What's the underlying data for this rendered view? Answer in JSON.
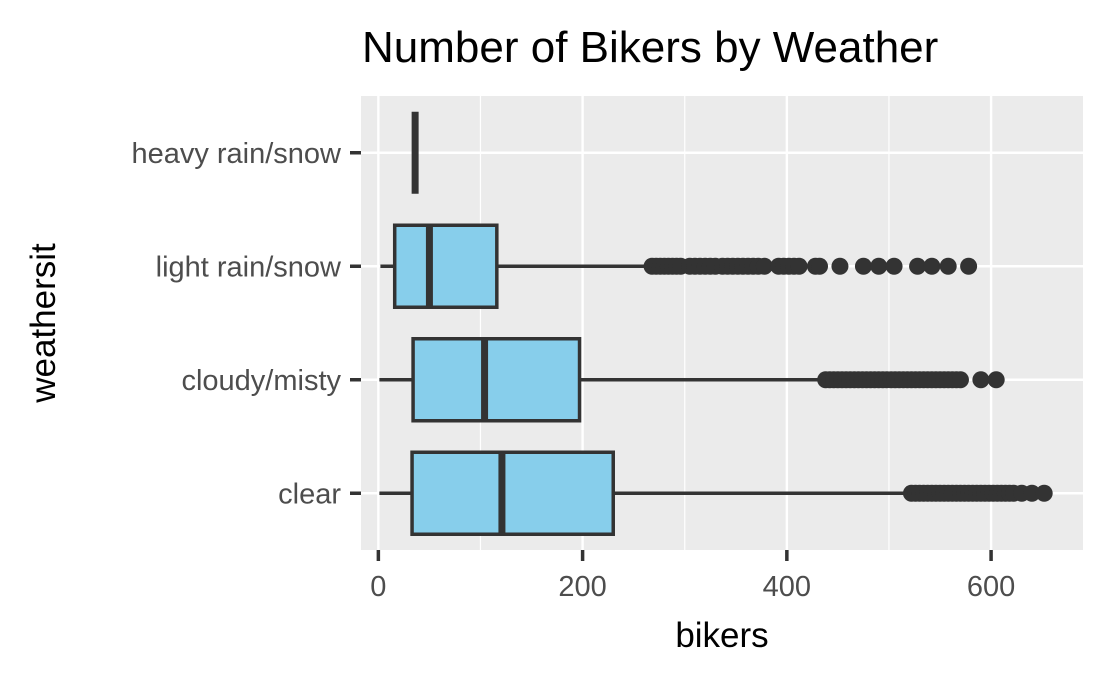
{
  "chart_data": {
    "type": "boxplot",
    "orientation": "horizontal",
    "title": "Number of Bikers by Weather",
    "xlabel": "bikers",
    "ylabel": "weathersit",
    "xlim": [
      -17,
      690
    ],
    "xticks": [
      0,
      200,
      400,
      600
    ],
    "xtick_labels": [
      "0",
      "200",
      "400",
      "600"
    ],
    "grid": true,
    "legend": "none",
    "colors": {
      "panel": "#ebebeb",
      "grid": "#ffffff",
      "box_fill": "#87ceeb",
      "box_line": "#333333",
      "tick_text": "#4d4d4d"
    },
    "categories": [
      "heavy rain/snow",
      "light rain/snow",
      "cloudy/misty",
      "clear"
    ],
    "boxes": [
      {
        "category": "heavy rain/snow",
        "min": 36,
        "q1": 36,
        "median": 36,
        "q3": 36,
        "max": 36,
        "outliers": []
      },
      {
        "category": "light rain/snow",
        "min": 2,
        "q1": 16,
        "median": 50,
        "q3": 116,
        "max": 265,
        "outliers": [
          268,
          272,
          276,
          280,
          284,
          288,
          292,
          296,
          305,
          310,
          315,
          320,
          325,
          330,
          337,
          342,
          347,
          352,
          357,
          362,
          367,
          372,
          378,
          392,
          397,
          402,
          407,
          412,
          428,
          432,
          452,
          475,
          490,
          505,
          528,
          542,
          558,
          578
        ]
      },
      {
        "category": "cloudy/misty",
        "min": 1,
        "q1": 34,
        "median": 104,
        "q3": 197,
        "max": 434,
        "outliers": [
          438,
          442,
          446,
          450,
          454,
          458,
          462,
          466,
          470,
          474,
          478,
          482,
          486,
          490,
          494,
          498,
          502,
          506,
          510,
          514,
          518,
          522,
          526,
          530,
          534,
          538,
          542,
          546,
          550,
          554,
          558,
          562,
          566,
          570,
          590,
          605
        ]
      },
      {
        "category": "clear",
        "min": 1,
        "q1": 33,
        "median": 121,
        "q3": 230,
        "max": 517,
        "outliers": [
          522,
          526,
          530,
          534,
          538,
          542,
          546,
          550,
          554,
          558,
          562,
          566,
          570,
          574,
          578,
          582,
          586,
          590,
          594,
          598,
          602,
          606,
          610,
          614,
          618,
          622,
          630,
          640,
          652
        ]
      }
    ]
  }
}
